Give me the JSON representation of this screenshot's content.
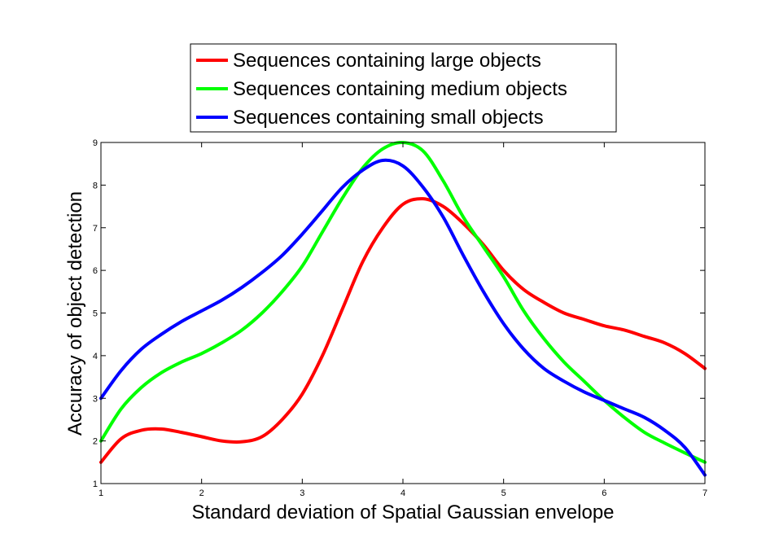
{
  "chart_data": {
    "type": "line",
    "title": "",
    "xlabel": "Standard deviation of Spatial Gaussian envelope",
    "ylabel": "Accuracy of object detection",
    "xlim": [
      1,
      7
    ],
    "ylim": [
      1,
      9
    ],
    "xticks": [
      "1",
      "2",
      "3",
      "4",
      "5",
      "6",
      "7"
    ],
    "yticks": [
      "1",
      "2",
      "3",
      "4",
      "5",
      "6",
      "7",
      "8",
      "9"
    ],
    "grid": false,
    "legend_position": "top-center",
    "series": [
      {
        "name": "Sequences containing large objects",
        "color": "#ff0000",
        "x": [
          1.0,
          1.2,
          1.4,
          1.6,
          1.8,
          2.0,
          2.2,
          2.4,
          2.6,
          2.8,
          3.0,
          3.2,
          3.4,
          3.6,
          3.8,
          4.0,
          4.2,
          4.4,
          4.6,
          4.8,
          5.0,
          5.2,
          5.4,
          5.6,
          5.8,
          6.0,
          6.2,
          6.4,
          6.6,
          6.8,
          7.0
        ],
        "y": [
          1.5,
          2.05,
          2.25,
          2.28,
          2.2,
          2.1,
          2.0,
          1.98,
          2.1,
          2.5,
          3.1,
          4.0,
          5.1,
          6.2,
          7.0,
          7.55,
          7.68,
          7.5,
          7.1,
          6.6,
          6.0,
          5.55,
          5.25,
          5.0,
          4.85,
          4.7,
          4.6,
          4.45,
          4.3,
          4.05,
          3.7
        ]
      },
      {
        "name": "Sequences containing medium objects",
        "color": "#00ff00",
        "x": [
          1.0,
          1.2,
          1.4,
          1.6,
          1.8,
          2.0,
          2.2,
          2.4,
          2.6,
          2.8,
          3.0,
          3.2,
          3.4,
          3.6,
          3.8,
          4.0,
          4.2,
          4.4,
          4.6,
          4.8,
          5.0,
          5.2,
          5.4,
          5.6,
          5.8,
          6.0,
          6.2,
          6.4,
          6.6,
          6.8,
          7.0
        ],
        "y": [
          2.0,
          2.75,
          3.25,
          3.6,
          3.85,
          4.05,
          4.3,
          4.6,
          5.0,
          5.5,
          6.1,
          6.9,
          7.7,
          8.4,
          8.85,
          9.0,
          8.8,
          8.1,
          7.25,
          6.55,
          5.85,
          5.05,
          4.4,
          3.85,
          3.4,
          2.95,
          2.55,
          2.2,
          1.95,
          1.72,
          1.5
        ]
      },
      {
        "name": "Sequences containing small objects",
        "color": "#0000ff",
        "x": [
          1.0,
          1.2,
          1.4,
          1.6,
          1.8,
          2.0,
          2.2,
          2.4,
          2.6,
          2.8,
          3.0,
          3.2,
          3.4,
          3.6,
          3.8,
          4.0,
          4.2,
          4.4,
          4.6,
          4.8,
          5.0,
          5.2,
          5.4,
          5.6,
          5.8,
          6.0,
          6.2,
          6.4,
          6.6,
          6.8,
          7.0
        ],
        "y": [
          3.0,
          3.65,
          4.15,
          4.5,
          4.8,
          5.05,
          5.3,
          5.6,
          5.95,
          6.35,
          6.85,
          7.4,
          7.95,
          8.35,
          8.58,
          8.45,
          7.95,
          7.25,
          6.35,
          5.5,
          4.75,
          4.15,
          3.7,
          3.4,
          3.15,
          2.95,
          2.75,
          2.55,
          2.25,
          1.85,
          1.2
        ]
      }
    ]
  }
}
